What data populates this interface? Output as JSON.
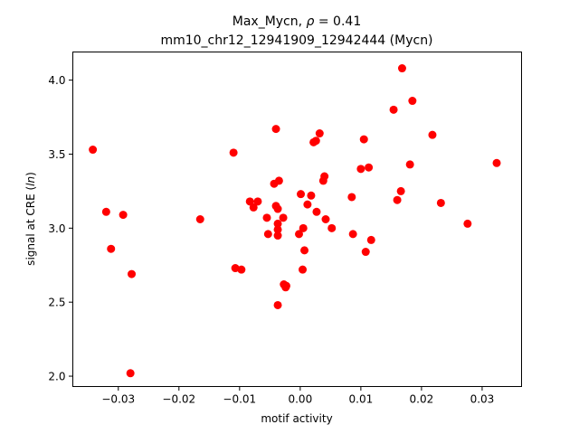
{
  "chart_data": {
    "type": "scatter",
    "title_line1_prefix": "Max_Mycn, ",
    "title_rho_symbol": "ρ",
    "title_rho_rest": " = 0.41",
    "title_line2": "mm10_chr12_12941909_12942444 (Mycn)",
    "xlabel": "motif activity",
    "ylabel_prefix": "signal at CRE (",
    "ylabel_italic": "ln",
    "ylabel_suffix": ")",
    "xlim": [
      -0.0375,
      0.0365
    ],
    "ylim": [
      1.93,
      4.19
    ],
    "xticks": [
      -0.03,
      -0.02,
      -0.01,
      0.0,
      0.01,
      0.02,
      0.03
    ],
    "xtick_labels": [
      "−0.03",
      "−0.02",
      "−0.01",
      "0.00",
      "0.01",
      "0.02",
      "0.03"
    ],
    "yticks": [
      2.0,
      2.5,
      3.0,
      3.5,
      4.0
    ],
    "ytick_labels": [
      "2.0",
      "2.5",
      "3.0",
      "3.5",
      "4.0"
    ],
    "grid": false,
    "marker_color": "#ff0000",
    "points": [
      {
        "x": -0.0342,
        "y": 3.53
      },
      {
        "x": -0.032,
        "y": 3.11
      },
      {
        "x": -0.0312,
        "y": 2.86
      },
      {
        "x": -0.0292,
        "y": 3.09
      },
      {
        "x": -0.0278,
        "y": 2.69
      },
      {
        "x": -0.028,
        "y": 2.02
      },
      {
        "x": -0.0165,
        "y": 3.06
      },
      {
        "x": -0.011,
        "y": 3.51
      },
      {
        "x": -0.0107,
        "y": 2.73
      },
      {
        "x": -0.0097,
        "y": 2.72
      },
      {
        "x": -0.0083,
        "y": 3.18
      },
      {
        "x": -0.0077,
        "y": 3.14
      },
      {
        "x": -0.007,
        "y": 3.18
      },
      {
        "x": -0.0055,
        "y": 3.07
      },
      {
        "x": -0.0053,
        "y": 2.96
      },
      {
        "x": -0.0043,
        "y": 3.3
      },
      {
        "x": -0.004,
        "y": 3.67
      },
      {
        "x": -0.004,
        "y": 3.15
      },
      {
        "x": -0.0037,
        "y": 3.13
      },
      {
        "x": -0.0035,
        "y": 3.32
      },
      {
        "x": -0.0037,
        "y": 3.03
      },
      {
        "x": -0.0037,
        "y": 2.99
      },
      {
        "x": -0.0037,
        "y": 2.95
      },
      {
        "x": -0.0037,
        "y": 2.48
      },
      {
        "x": -0.0028,
        "y": 3.07
      },
      {
        "x": -0.0027,
        "y": 2.62
      },
      {
        "x": -0.0024,
        "y": 2.6
      },
      {
        "x": -0.0023,
        "y": 2.61
      },
      {
        "x": -0.0002,
        "y": 2.96
      },
      {
        "x": 0.0001,
        "y": 3.23
      },
      {
        "x": 0.0004,
        "y": 2.72
      },
      {
        "x": 0.0005,
        "y": 3.0
      },
      {
        "x": 0.0007,
        "y": 2.85
      },
      {
        "x": 0.0012,
        "y": 3.16
      },
      {
        "x": 0.0018,
        "y": 3.22
      },
      {
        "x": 0.0022,
        "y": 3.58
      },
      {
        "x": 0.0026,
        "y": 3.59
      },
      {
        "x": 0.0027,
        "y": 3.11
      },
      {
        "x": 0.0032,
        "y": 3.64
      },
      {
        "x": 0.0038,
        "y": 3.32
      },
      {
        "x": 0.004,
        "y": 3.35
      },
      {
        "x": 0.0042,
        "y": 3.06
      },
      {
        "x": 0.0052,
        "y": 3.0
      },
      {
        "x": 0.0085,
        "y": 3.21
      },
      {
        "x": 0.0087,
        "y": 2.96
      },
      {
        "x": 0.01,
        "y": 3.4
      },
      {
        "x": 0.0105,
        "y": 3.6
      },
      {
        "x": 0.0108,
        "y": 2.84
      },
      {
        "x": 0.0113,
        "y": 3.41
      },
      {
        "x": 0.0117,
        "y": 2.92
      },
      {
        "x": 0.0154,
        "y": 3.8
      },
      {
        "x": 0.016,
        "y": 3.19
      },
      {
        "x": 0.0166,
        "y": 3.25
      },
      {
        "x": 0.0168,
        "y": 4.08
      },
      {
        "x": 0.0181,
        "y": 3.43
      },
      {
        "x": 0.0185,
        "y": 3.86
      },
      {
        "x": 0.0218,
        "y": 3.63
      },
      {
        "x": 0.0232,
        "y": 3.17
      },
      {
        "x": 0.0276,
        "y": 3.03
      },
      {
        "x": 0.0324,
        "y": 3.44
      }
    ]
  }
}
